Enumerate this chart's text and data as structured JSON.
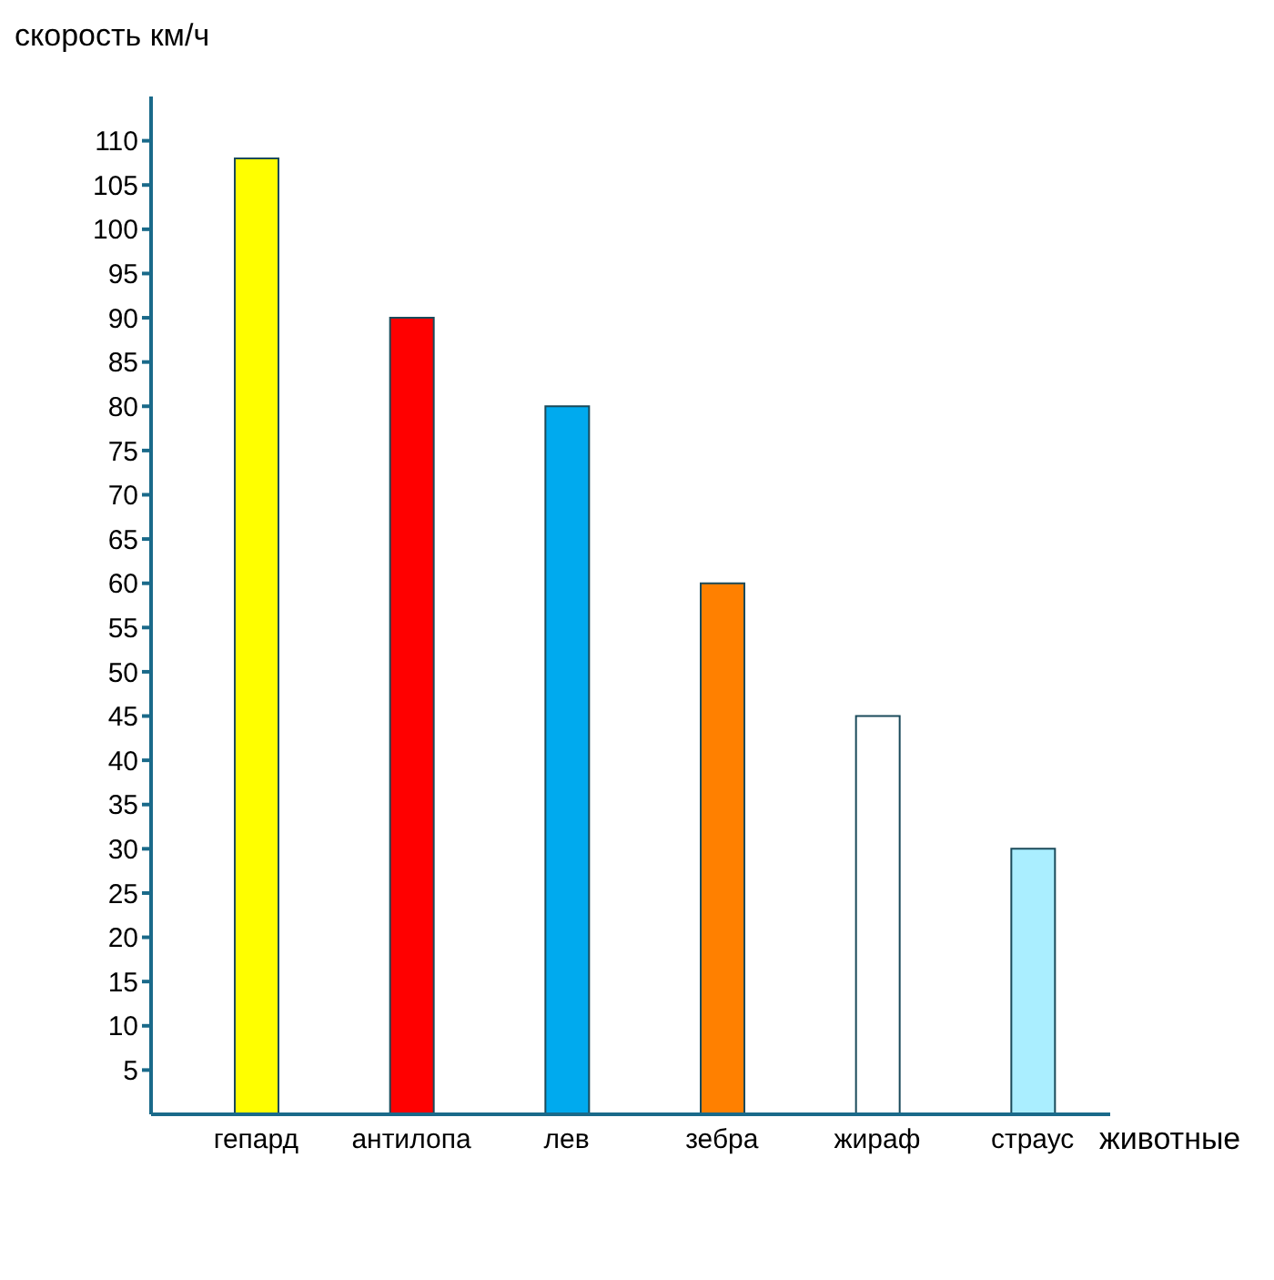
{
  "chart_data": {
    "type": "bar",
    "ylabel": "скорость км/ч",
    "xlabel": "животные",
    "categories": [
      "гепард",
      "антилопа",
      "лев",
      "зебра",
      "жираф",
      "страус"
    ],
    "values": [
      108,
      90,
      80,
      60,
      45,
      30
    ],
    "colors": [
      "#ffff00",
      "#ff0000",
      "#00aaee",
      "#ff8000",
      "#ffffff",
      "#aaeeff"
    ],
    "ylim": [
      0,
      115
    ],
    "yticks": [
      5,
      10,
      15,
      20,
      25,
      30,
      35,
      40,
      45,
      50,
      55,
      60,
      65,
      70,
      75,
      80,
      85,
      90,
      95,
      100,
      105,
      110
    ],
    "grid": false,
    "legend": false
  }
}
